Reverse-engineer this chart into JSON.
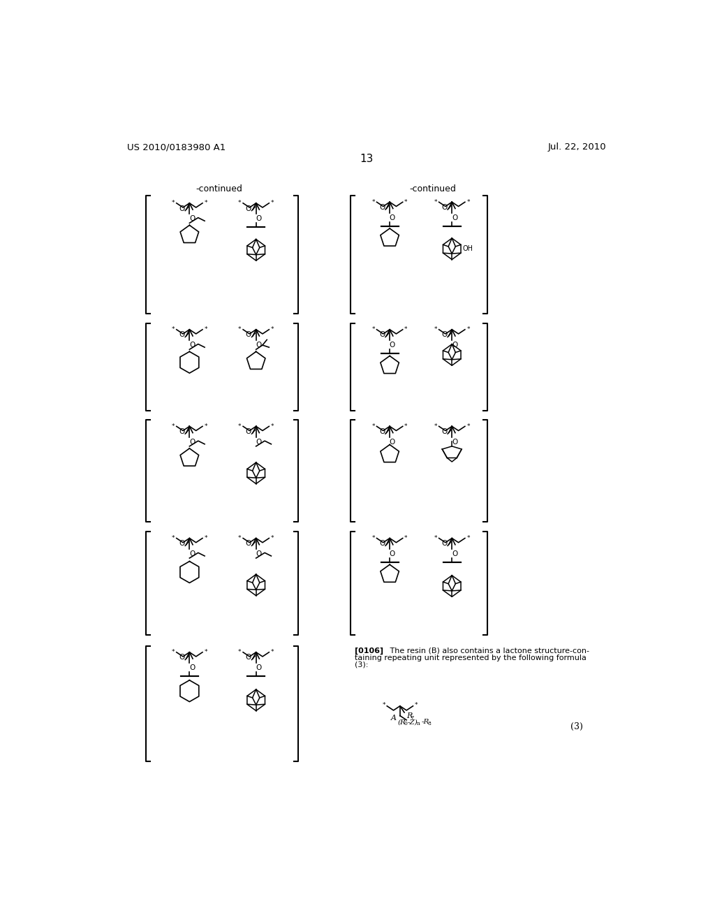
{
  "page_number": "13",
  "patent_number": "US 2010/0183980 A1",
  "patent_date": "Jul. 22, 2010",
  "background_color": "#ffffff",
  "text_color": "#000000"
}
